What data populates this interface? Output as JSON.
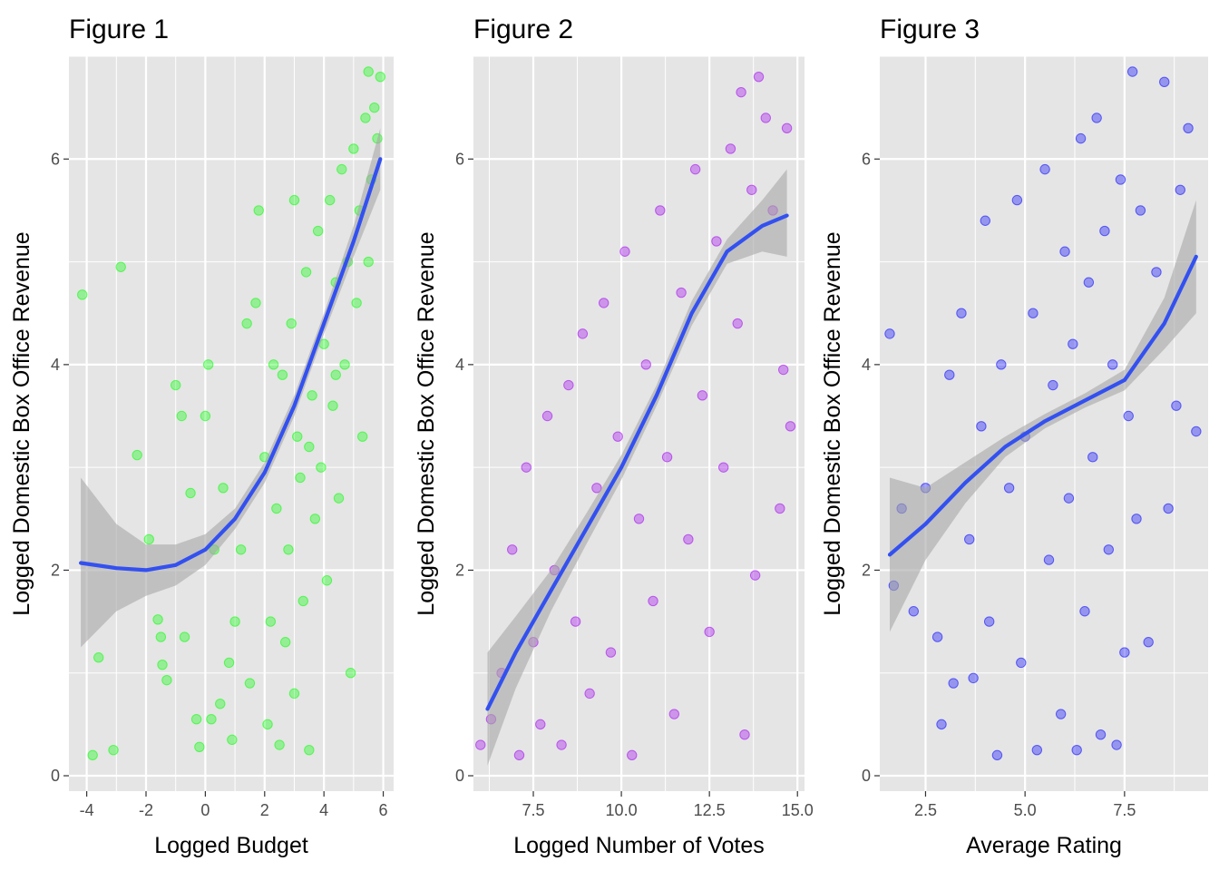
{
  "colors": {
    "panel_background": "#e5e5e5",
    "grid": "#ffffff",
    "smooth_line": "#3350f0",
    "ribbon": "#a6a6a6"
  },
  "chart_data": [
    {
      "type": "scatter",
      "title": "Figure 1",
      "xlabel": "Logged Budget",
      "ylabel": "Logged Domestic Box Office Revenue",
      "xlim": [
        -4.6,
        6.35
      ],
      "ylim": [
        -0.15,
        7.0
      ],
      "xticks": [
        -4,
        -2,
        0,
        2,
        4,
        6
      ],
      "xtick_labels": [
        "-4",
        "-2",
        "0",
        "2",
        "4",
        "6"
      ],
      "yticks": [
        0,
        2,
        4,
        6
      ],
      "ytick_labels": [
        "0",
        "2",
        "4",
        "6"
      ],
      "point_color": "#00ff00",
      "point_alpha": 0.35,
      "smooth": {
        "x": [
          -4.2,
          -3,
          -2,
          -1,
          0,
          1,
          2,
          3,
          4,
          5,
          5.9
        ],
        "y": [
          2.07,
          2.02,
          2.0,
          2.05,
          2.2,
          2.5,
          2.95,
          3.6,
          4.4,
          5.2,
          6.0
        ]
      },
      "ribbon": {
        "x": [
          -4.2,
          -3,
          -2,
          -1,
          0,
          1,
          2,
          3,
          4,
          5,
          5.9
        ],
        "upper": [
          2.9,
          2.45,
          2.25,
          2.25,
          2.35,
          2.6,
          3.05,
          3.7,
          4.5,
          5.35,
          6.3
        ],
        "lower": [
          1.25,
          1.6,
          1.75,
          1.85,
          2.05,
          2.4,
          2.85,
          3.5,
          4.3,
          5.05,
          5.7
        ]
      },
      "points": [
        [
          -4.15,
          4.68
        ],
        [
          -3.6,
          1.15
        ],
        [
          -3.8,
          0.2
        ],
        [
          -3.1,
          0.25
        ],
        [
          -2.85,
          4.95
        ],
        [
          -2.3,
          3.12
        ],
        [
          -1.9,
          2.3
        ],
        [
          -1.6,
          1.52
        ],
        [
          -1.5,
          1.35
        ],
        [
          -1.45,
          1.08
        ],
        [
          -1.3,
          0.93
        ],
        [
          -1.0,
          3.8
        ],
        [
          -0.8,
          3.5
        ],
        [
          -0.7,
          1.35
        ],
        [
          -0.5,
          2.75
        ],
        [
          -0.3,
          0.55
        ],
        [
          -0.2,
          0.28
        ],
        [
          0,
          3.5
        ],
        [
          0.1,
          4.0
        ],
        [
          0.2,
          0.55
        ],
        [
          0.3,
          2.2
        ],
        [
          0.5,
          0.7
        ],
        [
          0.6,
          2.8
        ],
        [
          0.8,
          1.1
        ],
        [
          0.9,
          0.35
        ],
        [
          1.0,
          1.5
        ],
        [
          1.2,
          2.2
        ],
        [
          1.4,
          4.4
        ],
        [
          1.5,
          0.9
        ],
        [
          1.7,
          4.6
        ],
        [
          1.8,
          5.5
        ],
        [
          2.0,
          3.1
        ],
        [
          2.1,
          0.5
        ],
        [
          2.2,
          1.5
        ],
        [
          2.4,
          2.6
        ],
        [
          2.5,
          0.3
        ],
        [
          2.6,
          3.9
        ],
        [
          2.7,
          1.3
        ],
        [
          2.8,
          2.2
        ],
        [
          2.9,
          4.4
        ],
        [
          3.0,
          0.8
        ],
        [
          3.1,
          3.3
        ],
        [
          3.2,
          2.9
        ],
        [
          3.3,
          1.7
        ],
        [
          3.4,
          4.9
        ],
        [
          3.5,
          0.25
        ],
        [
          3.6,
          3.7
        ],
        [
          3.7,
          2.5
        ],
        [
          3.8,
          5.3
        ],
        [
          3.9,
          3.0
        ],
        [
          4.0,
          4.2
        ],
        [
          4.1,
          1.9
        ],
        [
          4.2,
          5.6
        ],
        [
          4.3,
          3.6
        ],
        [
          4.4,
          4.8
        ],
        [
          4.5,
          2.7
        ],
        [
          4.6,
          5.9
        ],
        [
          4.7,
          4.0
        ],
        [
          4.8,
          5.0
        ],
        [
          4.9,
          1.0
        ],
        [
          5.0,
          6.1
        ],
        [
          5.1,
          4.6
        ],
        [
          5.2,
          5.5
        ],
        [
          5.3,
          3.3
        ],
        [
          5.4,
          6.4
        ],
        [
          5.5,
          5.0
        ],
        [
          5.6,
          5.8
        ],
        [
          5.7,
          6.5
        ],
        [
          5.8,
          6.2
        ],
        [
          5.9,
          6.8
        ],
        [
          5.5,
          6.85
        ],
        [
          3.0,
          5.6
        ],
        [
          2.3,
          4.0
        ],
        [
          3.5,
          3.2
        ],
        [
          4.4,
          3.9
        ]
      ]
    },
    {
      "type": "scatter",
      "title": "Figure 2",
      "xlabel": "Logged Number of Votes",
      "ylabel": "Logged Domestic Box Office Revenue",
      "xlim": [
        5.8,
        15.2
      ],
      "ylim": [
        -0.15,
        7.0
      ],
      "xticks": [
        7.5,
        10.0,
        12.5,
        15.0
      ],
      "xtick_labels": [
        "7.5",
        "10.0",
        "12.5",
        "15.0"
      ],
      "yticks": [
        0,
        2,
        4,
        6
      ],
      "ytick_labels": [
        "0",
        "2",
        "4",
        "6"
      ],
      "point_color": "#a000f0",
      "point_alpha": 0.35,
      "smooth": {
        "x": [
          6.2,
          7,
          8,
          9,
          10,
          11,
          12,
          13,
          14,
          14.7
        ],
        "y": [
          0.65,
          1.2,
          1.8,
          2.4,
          3.0,
          3.7,
          4.5,
          5.1,
          5.35,
          5.45
        ]
      },
      "ribbon": {
        "x": [
          6.2,
          7,
          8,
          9,
          10,
          11,
          12,
          13,
          14,
          14.7
        ],
        "upper": [
          1.2,
          1.55,
          2.0,
          2.55,
          3.12,
          3.8,
          4.62,
          5.22,
          5.6,
          5.9
        ],
        "lower": [
          0.1,
          0.85,
          1.6,
          2.25,
          2.88,
          3.6,
          4.38,
          4.98,
          5.1,
          5.05
        ]
      },
      "points": [
        [
          6.0,
          0.3
        ],
        [
          6.3,
          0.55
        ],
        [
          6.6,
          1.0
        ],
        [
          6.9,
          2.2
        ],
        [
          7.1,
          0.2
        ],
        [
          7.3,
          3.0
        ],
        [
          7.5,
          1.3
        ],
        [
          7.7,
          0.5
        ],
        [
          7.9,
          3.5
        ],
        [
          8.1,
          2.0
        ],
        [
          8.3,
          0.3
        ],
        [
          8.5,
          3.8
        ],
        [
          8.7,
          1.5
        ],
        [
          8.9,
          4.3
        ],
        [
          9.1,
          0.8
        ],
        [
          9.3,
          2.8
        ],
        [
          9.5,
          4.6
        ],
        [
          9.7,
          1.2
        ],
        [
          9.9,
          3.3
        ],
        [
          10.1,
          5.1
        ],
        [
          10.3,
          0.2
        ],
        [
          10.5,
          2.5
        ],
        [
          10.7,
          4.0
        ],
        [
          10.9,
          1.7
        ],
        [
          11.1,
          5.5
        ],
        [
          11.3,
          3.1
        ],
        [
          11.5,
          0.6
        ],
        [
          11.7,
          4.7
        ],
        [
          11.9,
          2.3
        ],
        [
          12.1,
          5.9
        ],
        [
          12.3,
          3.7
        ],
        [
          12.5,
          1.4
        ],
        [
          12.7,
          5.2
        ],
        [
          12.9,
          3.0
        ],
        [
          13.1,
          6.1
        ],
        [
          13.3,
          4.4
        ],
        [
          13.5,
          0.4
        ],
        [
          13.7,
          5.7
        ],
        [
          13.9,
          6.8
        ],
        [
          14.1,
          6.4
        ],
        [
          14.3,
          5.5
        ],
        [
          14.5,
          2.6
        ],
        [
          14.7,
          6.3
        ],
        [
          14.8,
          3.4
        ],
        [
          14.6,
          3.95
        ],
        [
          13.8,
          1.95
        ],
        [
          13.4,
          6.65
        ]
      ]
    },
    {
      "type": "scatter",
      "title": "Figure 3",
      "xlabel": "Average Rating",
      "ylabel": "Logged Domestic Box Office Revenue",
      "xlim": [
        1.35,
        9.6
      ],
      "ylim": [
        -0.15,
        7.0
      ],
      "xticks": [
        2.5,
        5.0,
        7.5
      ],
      "xtick_labels": [
        "2.5",
        "5.0",
        "7.5"
      ],
      "yticks": [
        0,
        2,
        4,
        6
      ],
      "ytick_labels": [
        "0",
        "2",
        "4",
        "6"
      ],
      "point_color": "#0000ff",
      "point_alpha": 0.35,
      "smooth": {
        "x": [
          1.6,
          2.5,
          3.5,
          4.5,
          5.5,
          6.5,
          7.5,
          8.5,
          9.3
        ],
        "y": [
          2.15,
          2.45,
          2.85,
          3.2,
          3.45,
          3.65,
          3.85,
          4.4,
          5.05
        ]
      },
      "ribbon": {
        "x": [
          1.6,
          2.5,
          3.5,
          4.5,
          5.5,
          6.5,
          7.5,
          8.5,
          9.3
        ],
        "upper": [
          2.9,
          2.8,
          3.05,
          3.3,
          3.52,
          3.72,
          3.95,
          4.65,
          5.6
        ],
        "lower": [
          1.4,
          2.1,
          2.65,
          3.1,
          3.38,
          3.58,
          3.75,
          4.15,
          4.5
        ]
      },
      "points": [
        [
          1.6,
          4.3
        ],
        [
          1.7,
          1.85
        ],
        [
          1.9,
          2.6
        ],
        [
          2.2,
          1.6
        ],
        [
          2.5,
          2.8
        ],
        [
          2.8,
          1.35
        ],
        [
          2.9,
          0.5
        ],
        [
          3.1,
          3.9
        ],
        [
          3.2,
          0.9
        ],
        [
          3.4,
          4.5
        ],
        [
          3.6,
          2.3
        ],
        [
          3.7,
          0.95
        ],
        [
          3.9,
          3.4
        ],
        [
          4.0,
          5.4
        ],
        [
          4.1,
          1.5
        ],
        [
          4.3,
          0.2
        ],
        [
          4.4,
          4.0
        ],
        [
          4.6,
          2.8
        ],
        [
          4.8,
          5.6
        ],
        [
          4.9,
          1.1
        ],
        [
          5.0,
          3.3
        ],
        [
          5.2,
          4.5
        ],
        [
          5.3,
          0.25
        ],
        [
          5.5,
          5.9
        ],
        [
          5.6,
          2.1
        ],
        [
          5.7,
          3.8
        ],
        [
          5.9,
          0.6
        ],
        [
          6.0,
          5.1
        ],
        [
          6.1,
          2.7
        ],
        [
          6.2,
          4.2
        ],
        [
          6.3,
          0.25
        ],
        [
          6.4,
          6.2
        ],
        [
          6.5,
          1.6
        ],
        [
          6.6,
          4.8
        ],
        [
          6.7,
          3.1
        ],
        [
          6.8,
          6.4
        ],
        [
          6.9,
          0.4
        ],
        [
          7.0,
          5.3
        ],
        [
          7.1,
          2.2
        ],
        [
          7.2,
          4.0
        ],
        [
          7.3,
          0.3
        ],
        [
          7.4,
          5.8
        ],
        [
          7.5,
          1.2
        ],
        [
          7.6,
          3.5
        ],
        [
          7.7,
          6.85
        ],
        [
          7.8,
          2.5
        ],
        [
          7.9,
          5.5
        ],
        [
          8.1,
          1.3
        ],
        [
          8.3,
          4.9
        ],
        [
          8.5,
          6.75
        ],
        [
          8.6,
          2.6
        ],
        [
          8.8,
          3.6
        ],
        [
          8.9,
          5.7
        ],
        [
          9.1,
          6.3
        ],
        [
          9.3,
          3.35
        ]
      ]
    }
  ]
}
